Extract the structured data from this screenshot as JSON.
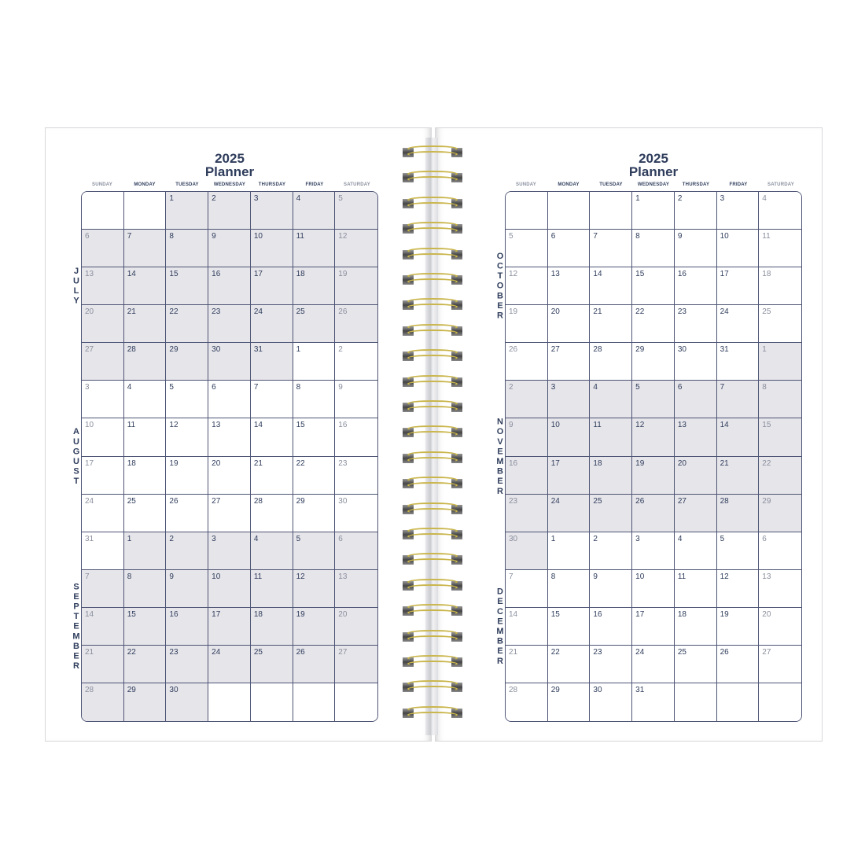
{
  "title_year": "2025",
  "title_word": "Planner",
  "weekdays": [
    "SUNDAY",
    "MONDAY",
    "TUESDAY",
    "WEDNESDAY",
    "THURSDAY",
    "FRIDAY",
    "SATURDAY"
  ],
  "colors": {
    "navy": "#2f3d5c",
    "grid": "#4d5474",
    "shade": "#e6e5ea",
    "weekend_text": "#8a8f9e",
    "wire": "#c9b54a"
  },
  "spiral": {
    "ring_count": 23,
    "icon": "spiral-binding"
  },
  "pages": [
    {
      "side": "left",
      "months": [
        {
          "name": "JULY",
          "days": 31,
          "start_weekday": 2,
          "shaded": true
        },
        {
          "name": "AUGUST",
          "days": 31,
          "start_weekday": 5,
          "shaded": false
        },
        {
          "name": "SEPTEMBER",
          "days": 30,
          "start_weekday": 1,
          "shaded": true
        }
      ]
    },
    {
      "side": "right",
      "months": [
        {
          "name": "OCTOBER",
          "days": 31,
          "start_weekday": 3,
          "shaded": false
        },
        {
          "name": "NOVEMBER",
          "days": 30,
          "start_weekday": 6,
          "shaded": true
        },
        {
          "name": "DECEMBER",
          "days": 31,
          "start_weekday": 1,
          "shaded": false
        }
      ]
    }
  ]
}
